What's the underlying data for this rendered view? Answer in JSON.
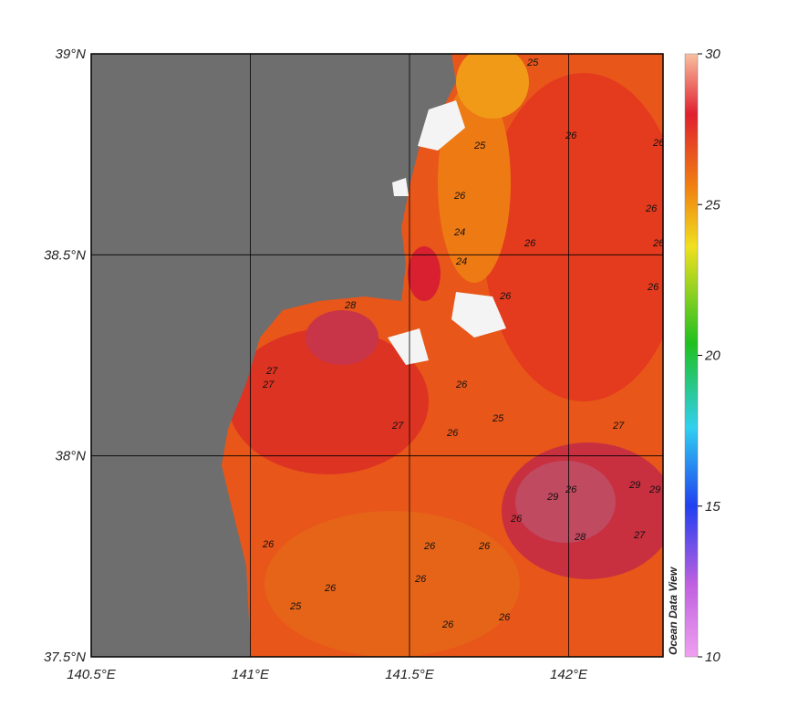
{
  "map": {
    "xlim": [
      140.5,
      142.3
    ],
    "ylim": [
      37.5,
      39
    ],
    "xticks": [
      {
        "value": 140.5,
        "label": "140.5°E"
      },
      {
        "value": 141,
        "label": "141°E"
      },
      {
        "value": 141.5,
        "label": "141.5°E"
      },
      {
        "value": 142,
        "label": "142°E"
      }
    ],
    "yticks": [
      {
        "value": 37.5,
        "label": "37.5°N"
      },
      {
        "value": 38,
        "label": "38°N"
      },
      {
        "value": 38.5,
        "label": "38.5°N"
      },
      {
        "value": 39,
        "label": "39°N"
      }
    ],
    "colorbar": {
      "range": [
        10,
        30
      ],
      "ticks": [
        10,
        15,
        20,
        25,
        30
      ]
    },
    "watermark": "Ocean Data View",
    "contour_labels": [
      25,
      25,
      26,
      26,
      26,
      26,
      24,
      24,
      26,
      26,
      26,
      28,
      26,
      27,
      27,
      27,
      26,
      26,
      25,
      26,
      26,
      27,
      29,
      29,
      29,
      28,
      27,
      26,
      26,
      26,
      25,
      26,
      26,
      26,
      26
    ]
  }
}
